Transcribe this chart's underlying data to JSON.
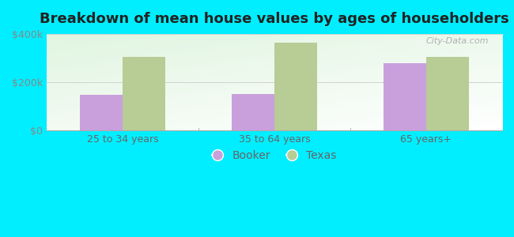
{
  "title": "Breakdown of mean house values by ages of householders",
  "categories": [
    "25 to 34 years",
    "35 to 64 years",
    "65 years+"
  ],
  "booker_values": [
    148000,
    152000,
    278000
  ],
  "texas_values": [
    303000,
    363000,
    303000
  ],
  "booker_color": "#c9a0dc",
  "texas_color": "#b8cc96",
  "ylim": [
    0,
    400000
  ],
  "yticks": [
    0,
    200000,
    400000
  ],
  "ytick_labels": [
    "$0",
    "$200k",
    "$400k"
  ],
  "legend_labels": [
    "Booker",
    "Texas"
  ],
  "background_color": "#00eeff",
  "title_fontsize": 13,
  "bar_width": 0.28,
  "watermark_text": "City-Data.com",
  "tick_color": "#888888",
  "label_color": "#666666"
}
